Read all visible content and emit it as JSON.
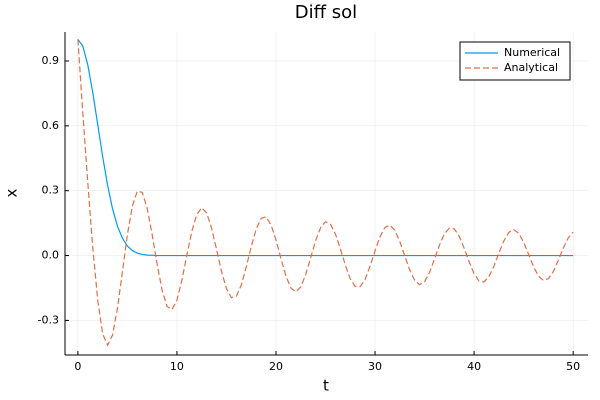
{
  "chart_data": {
    "type": "line",
    "title": "Diff sol",
    "x_label": "t",
    "y_label": "x",
    "x": [
      0,
      0.5,
      1,
      1.5,
      2,
      2.5,
      3,
      3.5,
      4,
      4.5,
      5,
      5.5,
      6,
      6.5,
      7,
      7.5,
      8,
      8.5,
      9,
      9.5,
      10,
      10.5,
      11,
      11.5,
      12,
      12.5,
      13,
      13.5,
      14,
      14.5,
      15,
      15.5,
      16,
      16.5,
      17,
      17.5,
      18,
      18.5,
      19,
      19.5,
      20,
      20.5,
      21,
      21.5,
      22,
      22.5,
      23,
      23.5,
      24,
      24.5,
      25,
      25.5,
      26,
      26.5,
      27,
      27.5,
      28,
      28.5,
      29,
      29.5,
      30,
      30.5,
      31,
      31.5,
      32,
      32.5,
      33,
      33.5,
      34,
      34.5,
      35,
      35.5,
      36,
      36.5,
      37,
      37.5,
      38,
      38.5,
      39,
      39.5,
      40,
      40.5,
      41,
      41.5,
      42,
      42.5,
      43,
      43.5,
      44,
      44.5,
      45,
      45.5,
      46,
      46.5,
      47,
      47.5,
      48,
      48.5,
      49,
      49.5,
      50
    ],
    "series": [
      {
        "name": "Numerical",
        "color": "#009af9",
        "linestyle": "solid",
        "values": [
          1,
          0.969,
          0.882,
          0.755,
          0.607,
          0.458,
          0.325,
          0.216,
          0.135,
          0.08,
          0.044,
          0.023,
          0.011,
          0.005,
          0.002,
          0.001,
          0,
          0,
          0,
          0,
          0,
          0,
          0,
          0,
          0,
          0,
          0,
          0,
          0,
          0,
          0,
          0,
          0,
          0,
          0,
          0,
          0,
          0,
          0,
          0,
          0,
          0,
          0,
          0,
          0,
          0,
          0,
          0,
          0,
          0,
          0,
          0,
          0,
          0,
          0,
          0,
          0,
          0,
          0,
          0,
          0,
          0,
          0,
          0,
          0,
          0,
          0,
          0,
          0,
          0,
          0,
          0,
          0,
          0,
          0,
          0,
          0,
          0,
          0,
          0,
          0,
          0,
          0,
          0,
          0,
          0,
          0,
          0,
          0,
          0,
          0,
          0,
          0,
          0,
          0,
          0,
          0,
          0,
          0,
          0,
          0
        ]
      },
      {
        "name": "Analytical",
        "color": "#e26f46",
        "linestyle": "dash",
        "values": [
          1,
          0.657,
          0.338,
          0.039,
          -0.205,
          -0.361,
          -0.415,
          -0.368,
          -0.242,
          -0.074,
          0.096,
          0.229,
          0.298,
          0.292,
          0.218,
          0.097,
          -0.04,
          -0.16,
          -0.235,
          -0.25,
          -0.206,
          -0.114,
          0.001,
          0.111,
          0.19,
          0.221,
          0.197,
          0.127,
          0.029,
          -0.073,
          -0.153,
          -0.195,
          -0.188,
          -0.136,
          -0.052,
          0.041,
          0.122,
          0.172,
          0.179,
          0.142,
          0.072,
          -0.014,
          -0.094,
          -0.15,
          -0.168,
          -0.145,
          -0.088,
          -0.01,
          0.068,
          0.129,
          0.157,
          0.145,
          0.1,
          0.031,
          -0.044,
          -0.108,
          -0.143,
          -0.144,
          -0.11,
          -0.049,
          0.022,
          0.087,
          0.13,
          0.141,
          0.117,
          0.065,
          -0.002,
          -0.067,
          -0.115,
          -0.135,
          -0.121,
          -0.078,
          -0.017,
          0.048,
          0.1,
          0.127,
          0.123,
          0.089,
          0.034,
          -0.029,
          -0.084,
          -0.118,
          -0.122,
          -0.097,
          -0.049,
          0.011,
          0.067,
          0.107,
          0.12,
          0.103,
          0.062,
          0.006,
          -0.051,
          -0.095,
          -0.115,
          -0.107,
          -0.074,
          -0.022,
          0.034,
          0.081,
          0.108
        ]
      }
    ],
    "xlim": [
      -1.3,
      51.5
    ],
    "ylim": [
      -0.46,
      1.034
    ],
    "xticks": [
      0,
      10,
      20,
      30,
      40,
      50
    ],
    "yticks": [
      {
        "value": -0.3,
        "label": "-0.3"
      },
      {
        "value": 0,
        "label": "0.0"
      },
      0.3,
      0.6,
      0.9
    ],
    "grid": true,
    "legend": "top-right"
  }
}
